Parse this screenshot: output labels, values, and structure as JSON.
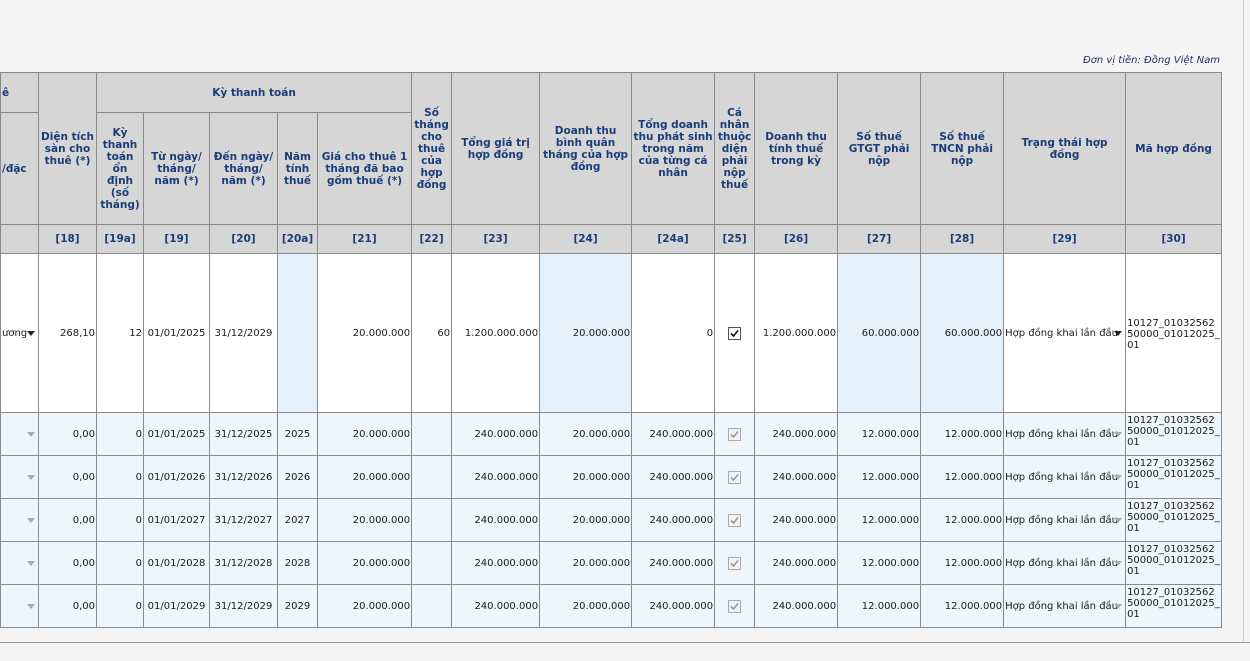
{
  "note": "Đơn vị tiền: Đồng Việt Nam",
  "table": {
    "group_headers": [
      "ê",
      "Kỳ thanh toán"
    ],
    "headers": [
      "/đặc",
      "Diện tích sàn cho thuê (*)",
      "Kỳ thanh toán ổn định (số tháng)",
      "Từ ngày/ tháng/ năm (*)",
      "Đến ngày/ tháng/ năm (*)",
      "Năm tính thuế",
      "Giá cho thuê 1 tháng đã bao gồm thuế (*)",
      "Số tháng cho thuê của hợp đồng",
      "Tổng giá trị hợp đồng",
      "Doanh thu bình quân tháng của hợp đồng",
      "Tổng doanh thu phát sinh trong năm của từng cá nhân",
      "Cá nhân thuộc diện phải nộp thuế",
      "Doanh thu tính thuế trong kỳ",
      "Số thuế GTGT phải nộp",
      "Số thuế TNCN phải nộp",
      "Trạng thái hợp đồng",
      "Mã hợp đồng"
    ],
    "codes": [
      null,
      "[18]",
      "[19a]",
      "[19]",
      "[20]",
      "[20a]",
      "[21]",
      "[22]",
      "[23]",
      "[24]",
      "[24a]",
      "[25]",
      "[26]",
      "[27]",
      "[28]",
      "[29]",
      "[30]"
    ],
    "rows": [
      [
        "ương",
        "268,10",
        "12",
        "01/01/2025",
        "31/12/2029",
        null,
        "20.000.000",
        "60",
        "1.200.000.000",
        "20.000.000",
        "0",
        true,
        "1.200.000.000",
        "60.000.000",
        "60.000.000",
        "Hợp đồng khai lần đầu",
        "10127_0103256250000_01012025_01"
      ],
      [
        null,
        "0,00",
        "0",
        "01/01/2025",
        "31/12/2025",
        "2025",
        "20.000.000",
        null,
        "240.000.000",
        "20.000.000",
        "240.000.000",
        true,
        "240.000.000",
        "12.000.000",
        "12.000.000",
        "Hợp đồng khai lần đầu",
        "10127_0103256250000_01012025_01"
      ],
      [
        null,
        "0,00",
        "0",
        "01/01/2026",
        "31/12/2026",
        "2026",
        "20.000.000",
        null,
        "240.000.000",
        "20.000.000",
        "240.000.000",
        true,
        "240.000.000",
        "12.000.000",
        "12.000.000",
        "Hợp đồng khai lần đầu",
        "10127_0103256250000_01012025_01"
      ],
      [
        null,
        "0,00",
        "0",
        "01/01/2027",
        "31/12/2027",
        "2027",
        "20.000.000",
        null,
        "240.000.000",
        "20.000.000",
        "240.000.000",
        true,
        "240.000.000",
        "12.000.000",
        "12.000.000",
        "Hợp đồng khai lần đầu",
        "10127_0103256250000_01012025_01"
      ],
      [
        null,
        "0,00",
        "0",
        "01/01/2028",
        "31/12/2028",
        "2028",
        "20.000.000",
        null,
        "240.000.000",
        "20.000.000",
        "240.000.000",
        true,
        "240.000.000",
        "12.000.000",
        "12.000.000",
        "Hợp đồng khai lần đầu",
        "10127_0103256250000_01012025_01"
      ],
      [
        null,
        "0,00",
        "0",
        "01/01/2029",
        "31/12/2029",
        "2029",
        "20.000.000",
        null,
        "240.000.000",
        "20.000.000",
        "240.000.000",
        true,
        "240.000.000",
        "12.000.000",
        "12.000.000",
        "Hợp đồng khai lần đầu",
        "10127_0103256250000_01012025_01"
      ]
    ]
  }
}
